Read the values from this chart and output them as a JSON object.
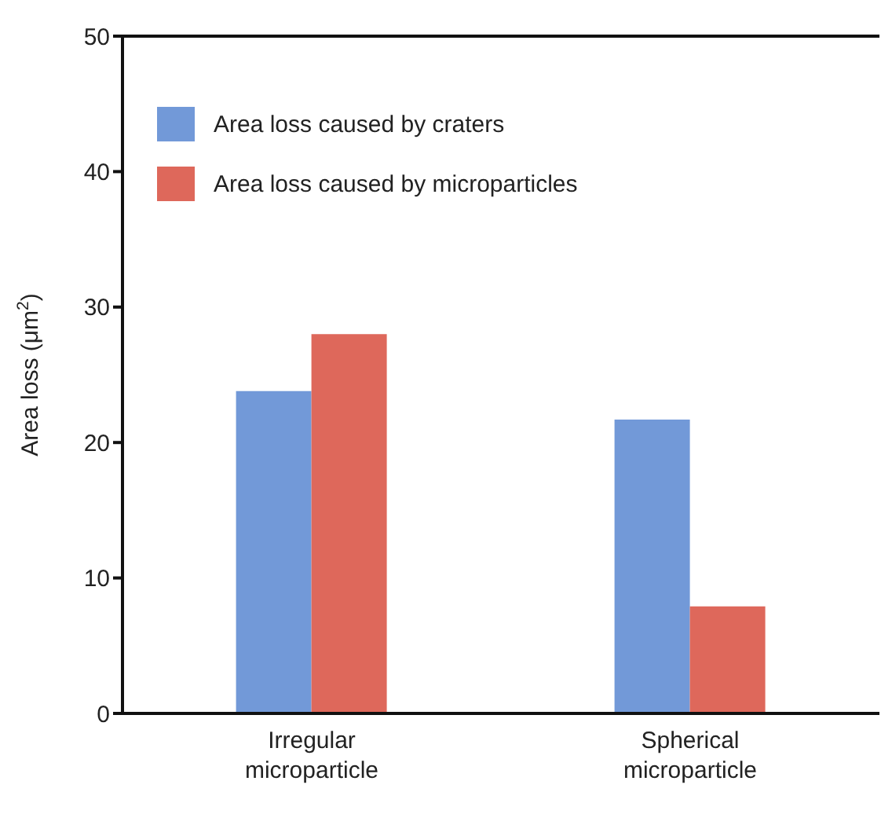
{
  "chart_data": {
    "type": "bar",
    "ylabel": "Area loss (μm$^{2}$)",
    "categories": [
      "Irregular microparticle",
      "Spherical microparticle"
    ],
    "series": [
      {
        "name": "Area loss caused by craters",
        "color": "#7299d8",
        "values": [
          23.8,
          21.7
        ]
      },
      {
        "name": "Area loss caused by microparticles",
        "color": "#de685b",
        "values": [
          28.0,
          7.9
        ]
      }
    ],
    "ylim": [
      0,
      50
    ],
    "yticks": [
      0,
      10,
      20,
      30,
      40,
      50
    ],
    "grid": false,
    "legend": "top left"
  }
}
